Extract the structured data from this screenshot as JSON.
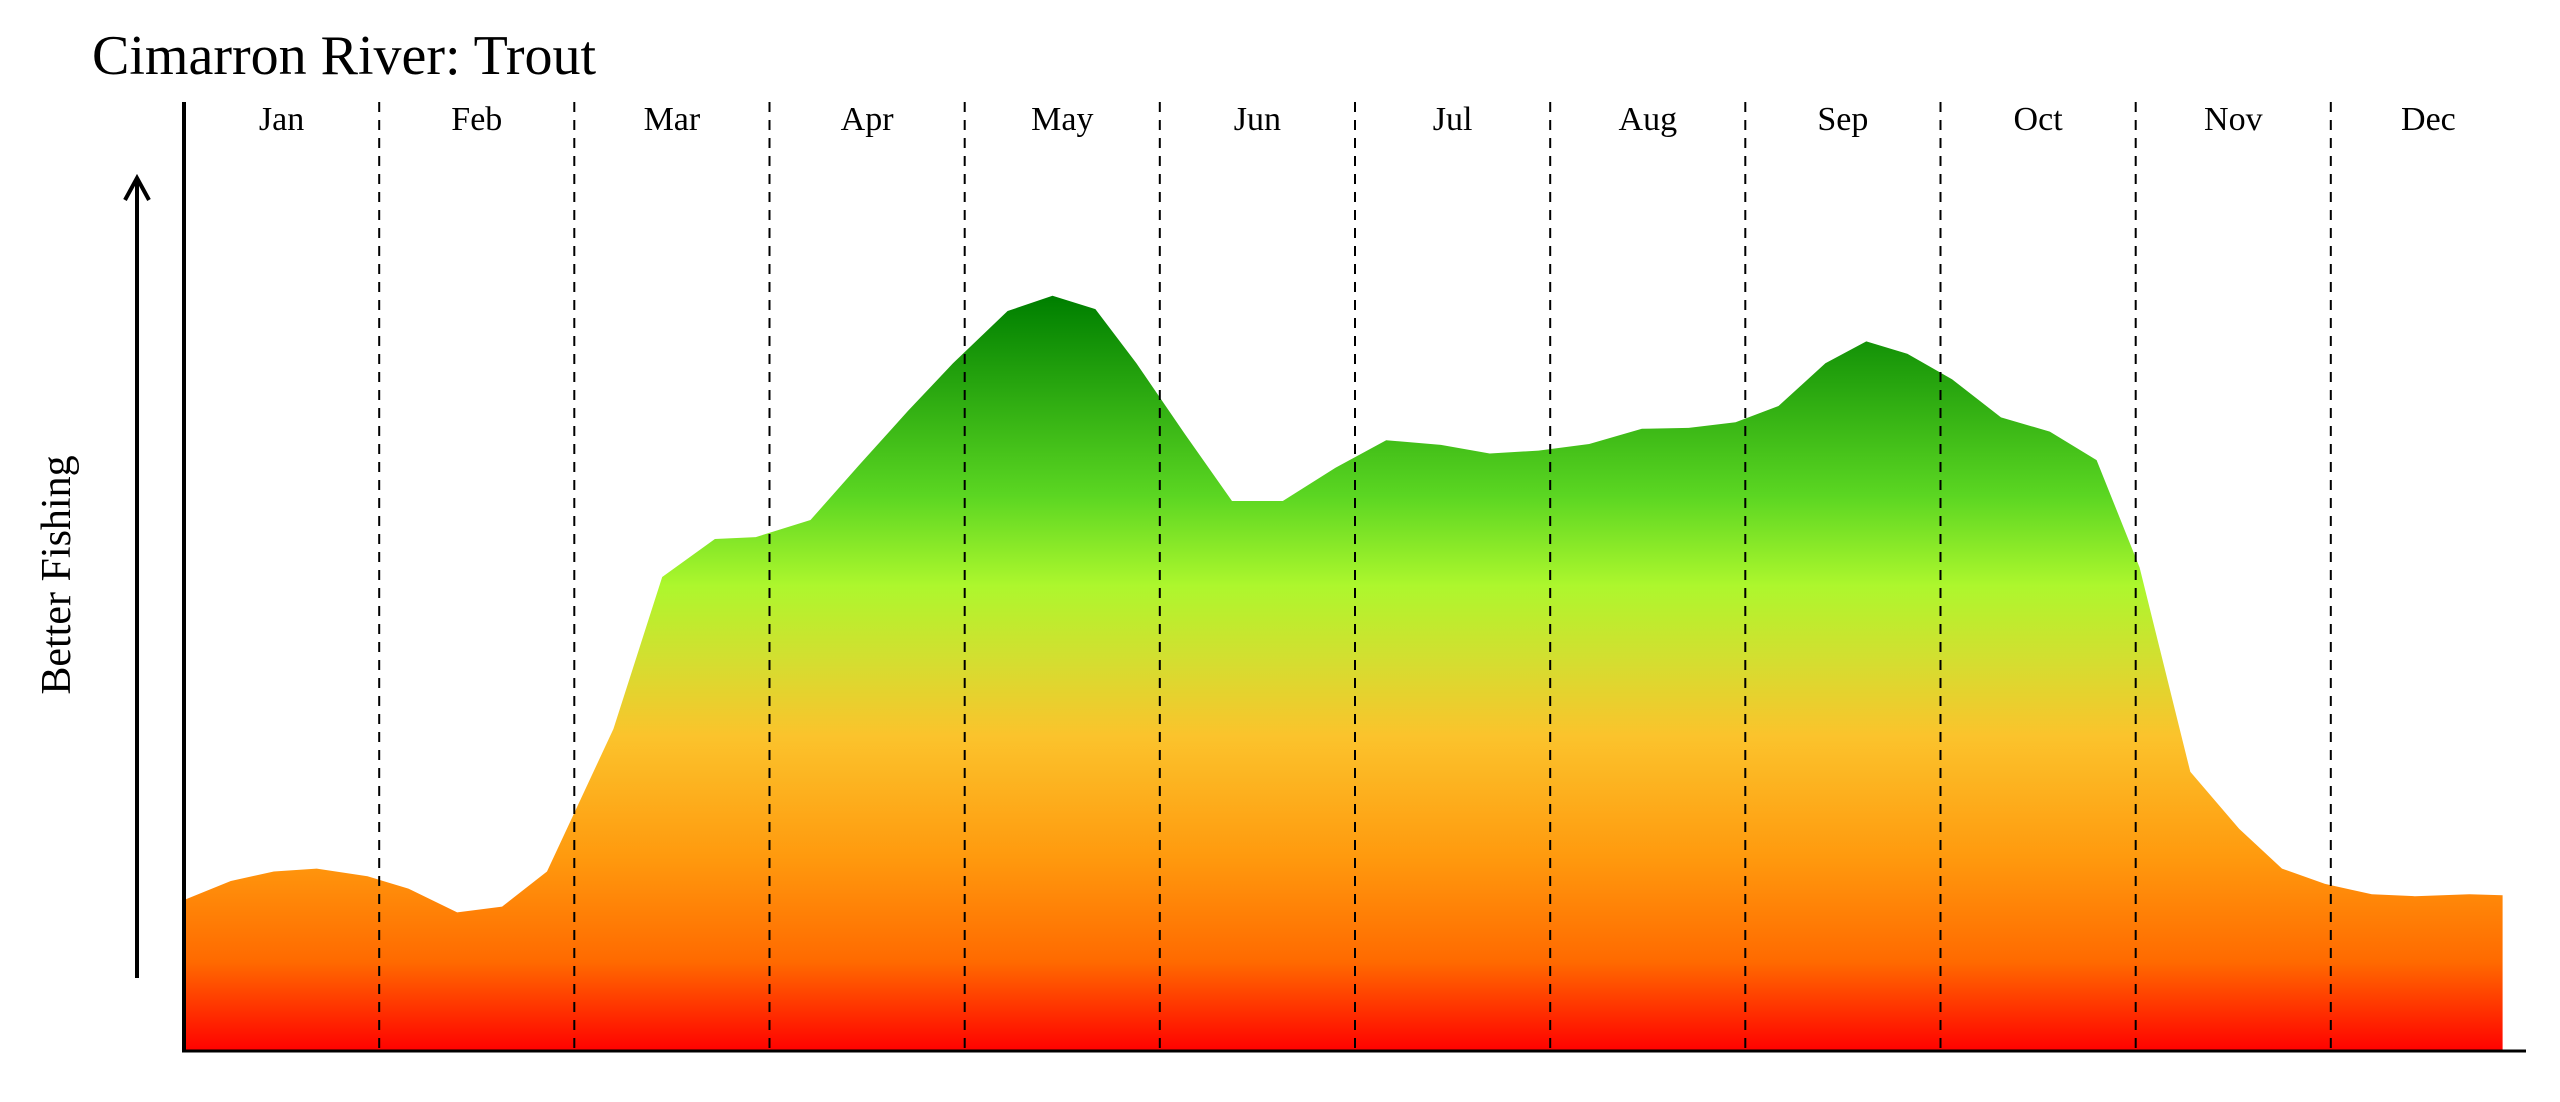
{
  "chart_data": {
    "type": "area",
    "title": "Cimarron River: Trout",
    "xlabel": "",
    "ylabel": "Better Fishing",
    "categories": [
      "Jan",
      "Feb",
      "Mar",
      "Apr",
      "May",
      "Jun",
      "Jul",
      "Aug",
      "Sep",
      "Oct",
      "Nov",
      "Dec"
    ],
    "xlim": [
      0,
      12
    ],
    "ylim": [
      0,
      100
    ],
    "grid": "vertical dashed month separators",
    "legend": "none",
    "x": [
      0,
      0.24,
      0.46,
      0.68,
      0.94,
      1.15,
      1.4,
      1.63,
      1.86,
      2.2,
      2.45,
      2.72,
      2.93,
      3.21,
      3.46,
      3.71,
      3.94,
      4.22,
      4.45,
      4.67,
      4.88,
      5.13,
      5.37,
      5.63,
      5.9,
      6.16,
      6.44,
      6.69,
      6.94,
      7.2,
      7.47,
      7.71,
      7.95,
      8.17,
      8.41,
      8.62,
      8.83,
      9.06,
      9.31,
      9.56,
      9.8,
      10.02,
      10.28,
      10.53,
      10.75,
      10.97,
      11.21,
      11.43,
      11.71,
      11.88
    ],
    "values": [
      16,
      18,
      19,
      19.3,
      18.5,
      17.2,
      14.7,
      15.3,
      19,
      34,
      50,
      54,
      54.2,
      56,
      61.8,
      67.5,
      72.5,
      78,
      79.6,
      78.2,
      72.5,
      65,
      58,
      58,
      61.5,
      64.4,
      63.9,
      63,
      63.3,
      64,
      65.6,
      65.7,
      66.3,
      68,
      72.5,
      74.8,
      73.5,
      70.8,
      66.8,
      65.3,
      62.3,
      51,
      29.5,
      23.5,
      19.3,
      17.7,
      16.6,
      16.4,
      16.6,
      16.5
    ],
    "colors": {
      "bottom": "#ff0000",
      "low": "#ff6a00",
      "mid": "#ff9a0e",
      "upper_mid": "#fbc32c",
      "yellow_green": "#d4de30",
      "lime": "#adf72d",
      "green": "#5bd622",
      "top": "#008000"
    }
  }
}
